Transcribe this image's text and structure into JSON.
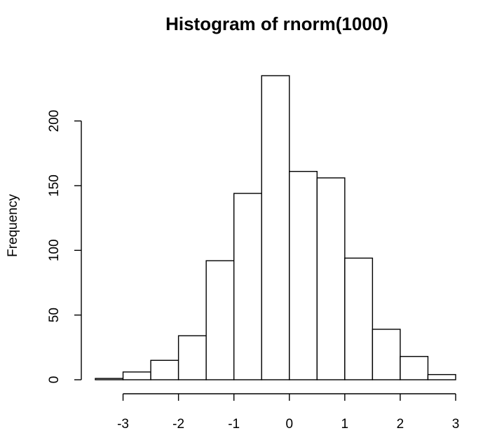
{
  "chart_data": {
    "type": "bar",
    "title": "Histogram of rnorm(1000)",
    "xlabel": "",
    "ylabel": "Frequency",
    "bin_edges": [
      -3.5,
      -3.0,
      -2.5,
      -2.0,
      -1.5,
      -1.0,
      -0.5,
      0.0,
      0.5,
      1.0,
      1.5,
      2.0,
      2.5,
      3.0
    ],
    "values": [
      1,
      6,
      15,
      34,
      92,
      144,
      235,
      161,
      156,
      94,
      39,
      18,
      4
    ],
    "xlim": [
      -3.5,
      3.0
    ],
    "ylim": [
      0,
      235
    ],
    "x_ticks": [
      -3,
      -2,
      -1,
      0,
      1,
      2,
      3
    ],
    "x_tick_labels": [
      "-3",
      "-2",
      "-1",
      "0",
      "1",
      "2",
      "3"
    ],
    "y_ticks": [
      0,
      50,
      100,
      150,
      200
    ],
    "y_tick_labels": [
      "0",
      "50",
      "100",
      "150",
      "200"
    ],
    "grid": false,
    "legend": "none",
    "colors": {
      "bar_fill": "#ffffff",
      "bar_stroke": "#000000",
      "axis": "#000000",
      "background": "#ffffff"
    }
  }
}
